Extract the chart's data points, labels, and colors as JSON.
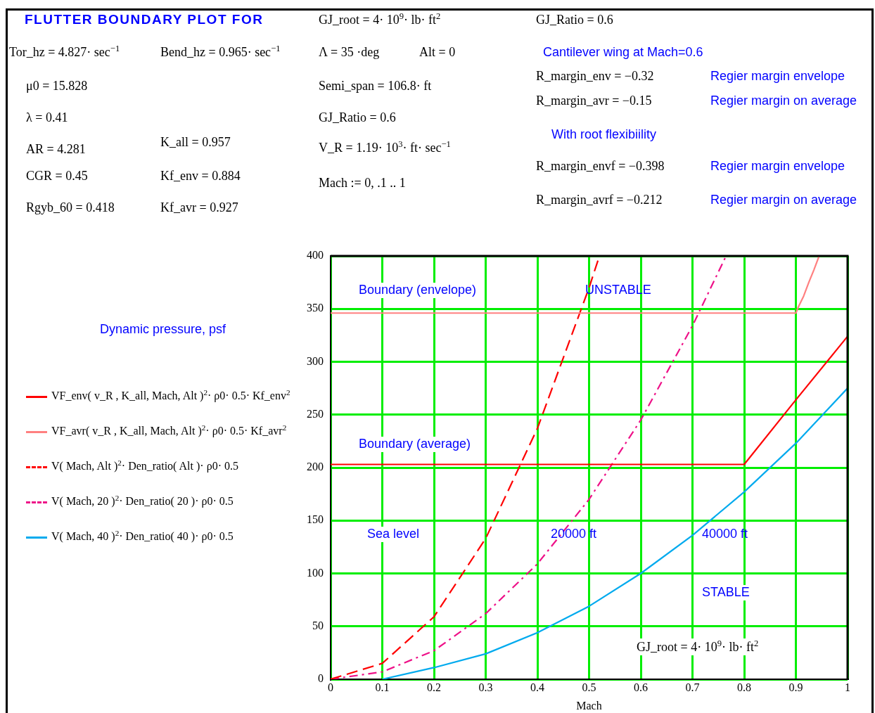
{
  "chart_data": {
    "type": "line",
    "title": "FLUTTER BOUNDARY PLOT FOR",
    "xlabel": "Mach",
    "xlim": [
      0,
      1
    ],
    "ylim": [
      0,
      400
    ],
    "xticks": [
      0,
      0.1,
      0.2,
      0.3,
      0.4,
      0.5,
      0.6,
      0.7,
      0.8,
      0.9,
      1
    ],
    "yticks": [
      0,
      50,
      100,
      150,
      200,
      250,
      300,
      350,
      400
    ],
    "grid": true,
    "legend": "left",
    "series": [
      {
        "name": "VF_env( v_R , K_all, Mach, Alt )$^{2}$· ρ0· 0.5· Kf_env$^{2}$",
        "color": "#ff0000",
        "line_style": "solid",
        "x": [
          0,
          0.1,
          0.2,
          0.3,
          0.4,
          0.5,
          0.6,
          0.7,
          0.8,
          0.9,
          1
        ],
        "values": [
          203,
          203,
          203,
          203,
          203,
          203,
          203,
          203,
          203,
          264,
          324
        ]
      },
      {
        "name": "VF_avr( v_R , K_all, Mach, Alt )$^{2}$· ρ0· 0.5· Kf_avr$^{2}$",
        "color": "#ff8080",
        "line_style": "solid",
        "x": [
          0,
          0.1,
          0.2,
          0.3,
          0.4,
          0.5,
          0.6,
          0.7,
          0.8,
          0.9,
          0.905,
          0.915,
          0.925,
          0.935,
          0.945
        ],
        "values": [
          346,
          346,
          346,
          346,
          346,
          346,
          346,
          346,
          346,
          346,
          352,
          362,
          375,
          387,
          400
        ]
      },
      {
        "name": "V( Mach, Alt )$^{2}$· Den_ratio( Alt )· ρ0· 0.5",
        "color": "#ff0000",
        "line_style": "dashed",
        "x": [
          0,
          0.1,
          0.2,
          0.3,
          0.4,
          0.5,
          0.52
        ],
        "values": [
          0,
          15,
          59,
          133,
          237,
          370,
          400
        ]
      },
      {
        "name": "V( Mach, 20 )$^{2}$· Den_ratio( 20 )· ρ0· 0.5",
        "color": "#ee1188",
        "line_style": "dashdot",
        "x": [
          0,
          0.1,
          0.2,
          0.3,
          0.4,
          0.5,
          0.6,
          0.7,
          0.765
        ],
        "values": [
          0,
          7,
          27,
          62,
          109,
          170,
          245,
          334,
          400
        ]
      },
      {
        "name": "V( Mach, 40 )$^{2}$· Den_ratio( 40 )· ρ0· 0.5",
        "color": "#00aaee",
        "line_style": "solid",
        "x": [
          0.1,
          0.2,
          0.3,
          0.4,
          0.5,
          0.6,
          0.7,
          0.8,
          0.9,
          1
        ],
        "values": [
          0,
          11,
          24,
          44,
          69,
          100,
          136,
          177,
          223,
          275
        ]
      }
    ],
    "annotations": [
      "GJ_root = 4· 10$^{9}$· lb· ft$^{2}$",
      "GJ_Ratio = 0.6",
      "Tor_hz = 4.827· sec$^{−1}$",
      "Bend_hz = 0.965· sec$^{−1}$",
      "Λ = 35 ·deg",
      "Alt = 0",
      "Cantilever wing at Mach=0.6",
      "μ0 = 15.828",
      "Semi_span = 106.8· ft",
      "R_margin_env = −0.32",
      "Regier  margin envelope",
      "R_margin_avr = −0.15",
      "Regier  margin on average",
      "λ = 0.41",
      "GJ_Ratio = 0.6",
      "With root flexibiility",
      "AR = 4.281",
      "K_all = 0.957",
      "V_R = 1.19· 10$^{3}$· ft· sec$^{−1}$",
      "R_margin_envf = −0.398",
      "Regier  margin envelope",
      "CGR = 0.45",
      "Kf_env = 0.884",
      "Mach := 0, .1 .. 1",
      "R_margin_avrf = −0.212",
      "Regier  margin on average",
      "Rgyb_60 = 0.418",
      "Kf_avr = 0.927",
      "Boundary (envelope)",
      "UNSTABLE",
      "Boundary (average)",
      "Sea level",
      "20000 ft",
      "40000 ft",
      "STABLE",
      "GJ_root = 4· 10$^{9}$· lb· ft$^{2}$",
      "Dynamic pressure, psf"
    ]
  }
}
